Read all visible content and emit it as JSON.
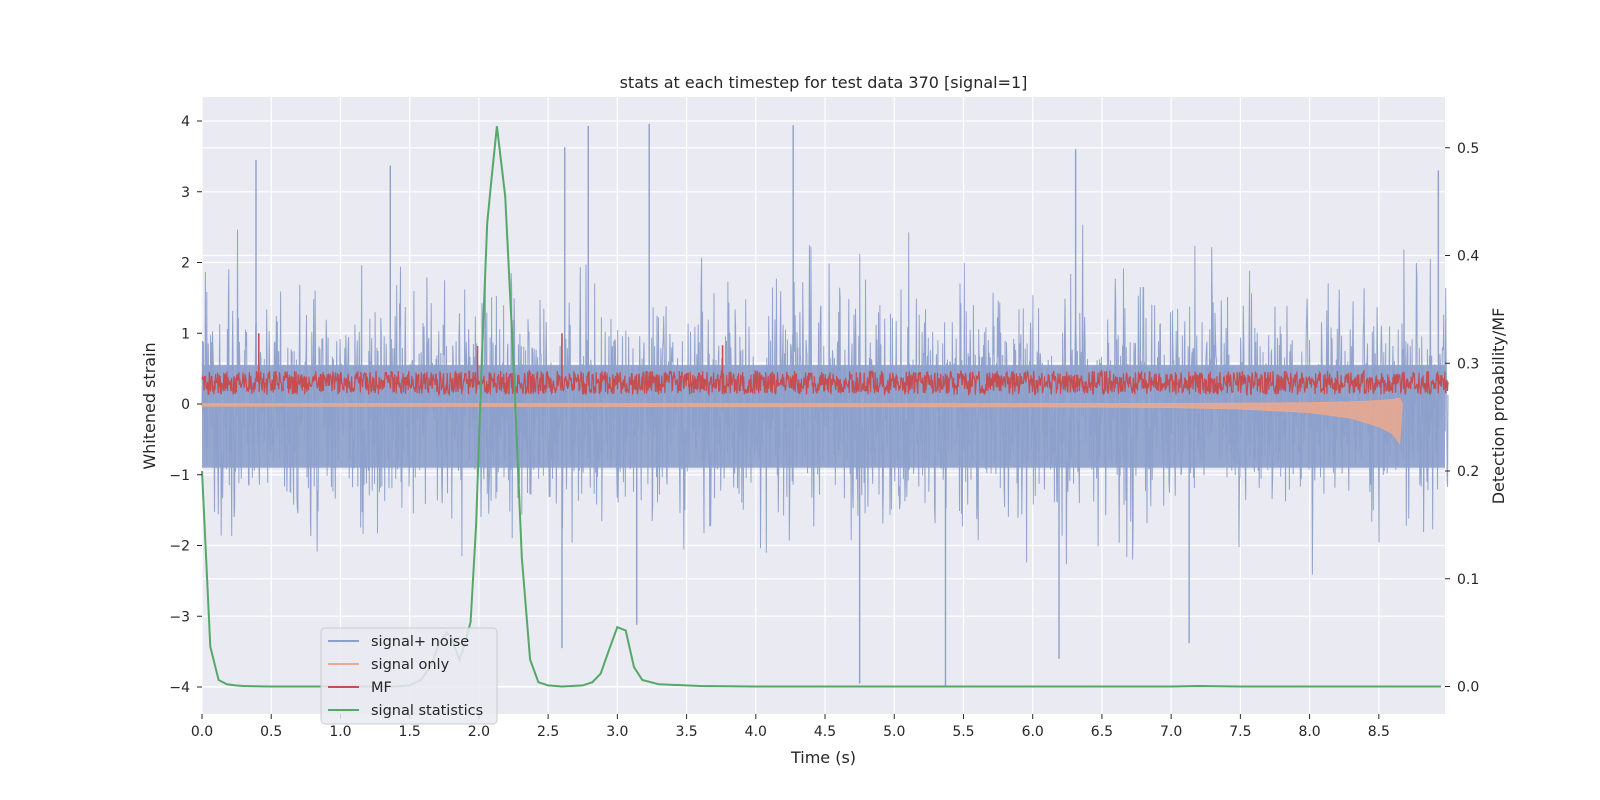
{
  "chart_data": {
    "type": "line",
    "title": "stats at each timestep for test data 370 [signal=1]",
    "xlabel": "Time (s)",
    "ylabel_left": "Whitened strain",
    "ylabel_right": "Detection probability/MF",
    "xlim": [
      0.0,
      9.0
    ],
    "ylim_left": [
      -4.4,
      4.35
    ],
    "ylim_right": [
      -0.024,
      0.545
    ],
    "x_ticks": [
      "0.0",
      "0.5",
      "1.0",
      "1.5",
      "2.0",
      "2.5",
      "3.0",
      "3.5",
      "4.0",
      "4.5",
      "5.0",
      "5.5",
      "6.0",
      "6.5",
      "7.0",
      "7.5",
      "8.0",
      "8.5"
    ],
    "y_ticks_left": [
      "4",
      "3",
      "2",
      "1",
      "0",
      "−1",
      "−2",
      "−3",
      "−4"
    ],
    "y_ticks_right": [
      "0.5",
      "0.4",
      "0.3",
      "0.2",
      "0.1",
      "0.0"
    ],
    "grid": true,
    "legend_position": "lower-left",
    "background": "#eaeaf2",
    "series": [
      {
        "name": "signal+ noise",
        "axis": "left",
        "color": "#8da0cb",
        "style": "dense noise band",
        "typical_range": [
          -1.9,
          1.9
        ],
        "peak_values": [
          {
            "x": 0.39,
            "y": 3.45
          },
          {
            "x": 1.36,
            "y": 3.37
          },
          {
            "x": 2.62,
            "y": 3.63
          },
          {
            "x": 2.79,
            "y": 3.93
          },
          {
            "x": 3.23,
            "y": 3.96
          },
          {
            "x": 4.27,
            "y": 3.94
          },
          {
            "x": 6.31,
            "y": 3.6
          },
          {
            "x": 8.93,
            "y": 3.3
          },
          {
            "x": 4.75,
            "y": -3.95
          },
          {
            "x": 5.37,
            "y": -4.0
          },
          {
            "x": 6.19,
            "y": -3.6
          },
          {
            "x": 2.6,
            "y": -3.45
          },
          {
            "x": 3.14,
            "y": -3.12
          },
          {
            "x": 7.13,
            "y": -3.38
          }
        ]
      },
      {
        "name": "signal only",
        "axis": "left",
        "color": "#e8a990",
        "x": [
          0.0,
          6.0,
          7.0,
          7.5,
          8.0,
          8.3,
          8.5,
          8.6,
          8.65,
          8.67
        ],
        "y_envelope": [
          0.03,
          0.04,
          0.05,
          0.07,
          0.12,
          0.2,
          0.32,
          0.42,
          0.56,
          0.0
        ]
      },
      {
        "name": "MF",
        "axis": "left",
        "color": "#c44e52",
        "style": "dense noise band",
        "typical_range": [
          0.02,
          0.58
        ],
        "peak_values": [
          {
            "x": 0.41,
            "y": 1.0
          },
          {
            "x": 2.6,
            "y": 1.0
          },
          {
            "x": 3.76,
            "y": 0.83
          },
          {
            "x": 1.99,
            "y": 0.82
          }
        ]
      },
      {
        "name": "signal statistics",
        "axis": "right",
        "color": "#55a868",
        "x": [
          0.0,
          0.06,
          0.12,
          0.18,
          0.24,
          0.3,
          0.5,
          1.0,
          1.4,
          1.5,
          1.58,
          1.65,
          1.72,
          1.77,
          1.8,
          1.86,
          1.9,
          1.94,
          1.98,
          2.02,
          2.06,
          2.09,
          2.13,
          2.19,
          2.25,
          2.31,
          2.37,
          2.43,
          2.5,
          2.6,
          2.75,
          2.82,
          2.88,
          2.94,
          3.0,
          3.06,
          3.12,
          3.18,
          3.3,
          3.6,
          4.0,
          5.0,
          6.0,
          7.0,
          7.2,
          7.5,
          8.0,
          8.5,
          8.95
        ],
        "values": [
          0.2,
          0.037,
          0.006,
          0.002,
          0.001,
          0.0005,
          0.0,
          0.0,
          0.0,
          0.001,
          0.006,
          0.018,
          0.042,
          0.05,
          0.045,
          0.025,
          0.04,
          0.06,
          0.15,
          0.3,
          0.43,
          0.47,
          0.52,
          0.455,
          0.3,
          0.12,
          0.025,
          0.004,
          0.001,
          0.0,
          0.001,
          0.004,
          0.012,
          0.034,
          0.055,
          0.052,
          0.018,
          0.006,
          0.002,
          0.0005,
          0.0,
          0.0,
          0.0,
          0.0,
          0.0005,
          0.0,
          0.0,
          0.0,
          0.0
        ]
      }
    ]
  }
}
